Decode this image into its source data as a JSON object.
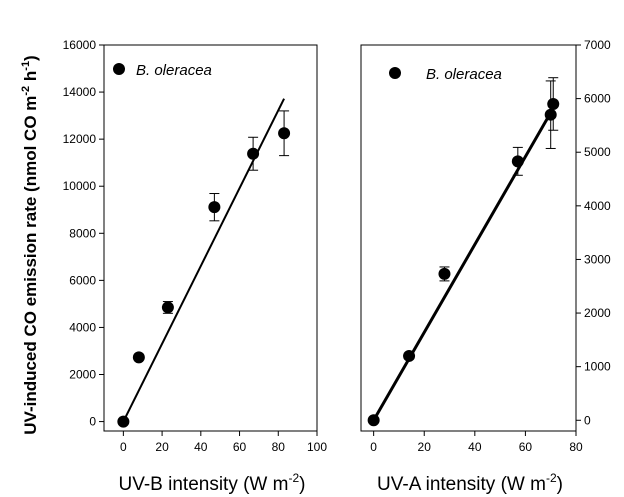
{
  "ylabel": {
    "prefix": "UV-induced CO emission rate (nmol CO m",
    "sup1": "-2",
    "mid": " h",
    "sup2": "-1",
    "suffix": ")"
  },
  "chart_data": [
    {
      "type": "scatter",
      "xlabel": {
        "text": "UV-B intensity (W m",
        "sup": "-2",
        "close": ")"
      },
      "x_ticks": [
        "0",
        "20",
        "40",
        "60",
        "80",
        "100"
      ],
      "y_ticks": [
        "0",
        "2000",
        "4000",
        "6000",
        "8000",
        "10000",
        "12000",
        "14000",
        "16000"
      ],
      "xlim": [
        -10,
        100
      ],
      "ylim": [
        -400,
        16000
      ],
      "legend": {
        "label": "B. oleracea",
        "position": "top-left"
      },
      "series": [
        {
          "name": "B. oleracea",
          "x": [
            0,
            8,
            23,
            47,
            67,
            83
          ],
          "y": [
            0,
            2730,
            4850,
            9110,
            11380,
            12250
          ],
          "err": [
            0,
            0,
            250,
            580,
            700,
            950
          ]
        }
      ],
      "fit": {
        "type": "line",
        "from": [
          0,
          0
        ],
        "to": [
          83,
          13720
        ]
      },
      "grid": false
    },
    {
      "type": "scatter",
      "xlabel": {
        "text": "UV-A intensity (W m",
        "sup": "-2",
        "close": ")"
      },
      "x_ticks": [
        "0",
        "20",
        "40",
        "60",
        "80"
      ],
      "y_ticks": [
        "0",
        "1000",
        "2000",
        "3000",
        "4000",
        "5000",
        "6000",
        "7000"
      ],
      "xlim": [
        -5,
        80
      ],
      "ylim": [
        -200,
        7000
      ],
      "legend": {
        "label": "B. oleracea",
        "position": "top-left"
      },
      "series": [
        {
          "name": "B. oleracea",
          "x": [
            0,
            14,
            28,
            57,
            70,
            71
          ],
          "y": [
            0,
            1200,
            2730,
            4830,
            5700,
            5900
          ],
          "err": [
            0,
            0,
            130,
            260,
            630,
            490
          ]
        }
      ],
      "fit": {
        "type": "line",
        "from": [
          0,
          0
        ],
        "to": [
          71,
          5820
        ]
      },
      "grid": false
    }
  ]
}
